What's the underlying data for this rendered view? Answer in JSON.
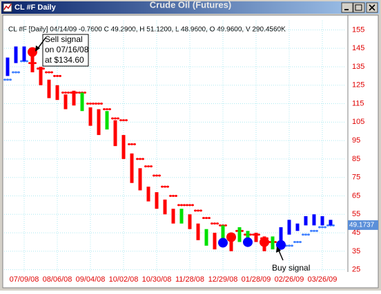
{
  "window": {
    "caption": "CL #F Daily"
  },
  "chart_data": {
    "type": "price-bars",
    "title": "Crude Oil (Futures)",
    "info": "CL #F [Daily] 04/14/09 -0.7600 C 49.2900, H 51.1200, L 48.9600, O 49.9600, V 290.4560K",
    "categories": [
      null,
      null,
      "07/09/08",
      null,
      null,
      null,
      "08/06/08",
      null,
      null,
      null,
      "09/04/08",
      null,
      null,
      null,
      "10/02/08",
      null,
      null,
      null,
      "10/30/08",
      null,
      null,
      null,
      "11/28/08",
      null,
      null,
      null,
      "12/29/08",
      null,
      null,
      null,
      "01/28/09",
      null,
      null,
      null,
      "02/26/09",
      null,
      null,
      null,
      "03/26/09",
      null
    ],
    "high": [
      140,
      146,
      146,
      142,
      135,
      128,
      125,
      120,
      122,
      121,
      113,
      112,
      111,
      106,
      98,
      88,
      80,
      70,
      67,
      63,
      58,
      58,
      55,
      50,
      47,
      45,
      49,
      44,
      48,
      46,
      45,
      43,
      43,
      48,
      52,
      50,
      54,
      55,
      54,
      52
    ],
    "low": [
      130,
      137,
      138,
      132,
      125,
      118,
      117,
      112,
      114,
      111,
      103,
      98,
      101,
      92,
      85,
      72,
      68,
      62,
      58,
      55,
      50,
      50,
      47,
      41,
      38,
      36,
      38,
      35,
      40,
      40,
      40,
      35,
      36,
      40,
      44,
      46,
      49,
      49,
      49,
      49
    ],
    "bar_colors": [
      "#0000ff",
      "#0000ff",
      "#0000ff",
      "#ff0000",
      "#ff0000",
      "#ff0000",
      "#ff0000",
      "#ff0000",
      "#ff0000",
      "#00e000",
      "#ff0000",
      "#ff0000",
      "#00e000",
      "#ff0000",
      "#ff0000",
      "#ff0000",
      "#ff0000",
      "#ff0000",
      "#ff0000",
      "#ff0000",
      "#ff0000",
      "#00e000",
      "#ff0000",
      "#ff0000",
      "#00e000",
      "#ff0000",
      "#00e000",
      "#ff0000",
      "#00e000",
      "#00e000",
      "#ff0000",
      "#ff0000",
      "#00e000",
      "#0000ff",
      "#0000ff",
      "#0000ff",
      "#0000ff",
      "#0000ff",
      "#0000ff",
      "#0000ff"
    ],
    "stops": [
      128,
      132,
      138,
      137,
      134,
      132,
      130,
      121,
      121,
      121,
      115,
      115,
      112,
      107,
      106,
      93,
      85,
      81,
      76,
      70,
      65,
      60,
      60,
      57,
      53,
      50,
      49,
      44,
      46,
      44,
      44,
      42,
      40,
      38,
      38,
      40,
      44,
      46,
      48,
      49
    ],
    "stop_colors": [
      "#4080ff",
      "#4080ff",
      "#4080ff",
      "#ff0000",
      "#ff0000",
      "#ff0000",
      "#ff0000",
      "#ff0000",
      "#ff0000",
      "#ff0000",
      "#ff0000",
      "#ff0000",
      "#ff0000",
      "#ff0000",
      "#ff0000",
      "#ff0000",
      "#ff0000",
      "#ff0000",
      "#ff0000",
      "#ff0000",
      "#ff0000",
      "#ff0000",
      "#ff0000",
      "#ff0000",
      "#ff0000",
      "#ff0000",
      "#ff0000",
      "#ff0000",
      "#ff0000",
      "#ff0000",
      "#ff0000",
      "#ff0000",
      "#ff0000",
      "#4080ff",
      "#4080ff",
      "#4080ff",
      "#4080ff",
      "#4080ff",
      "#4080ff",
      "#4080ff"
    ],
    "signals": [
      {
        "index": 3,
        "value": 143,
        "color": "#ff0000"
      },
      {
        "index": 26,
        "value": 39.6,
        "color": "#0000ff"
      },
      {
        "index": 27,
        "value": 42.6,
        "color": "#ff0000"
      },
      {
        "index": 29,
        "value": 39.9,
        "color": "#0000ff"
      },
      {
        "index": 31,
        "value": 39.9,
        "color": "#ff0000"
      },
      {
        "index": 33,
        "value": 38.4,
        "color": "#0000ff"
      }
    ],
    "sell_note": [
      "Sell signal",
      "on 07/16/08",
      "at $134.60"
    ],
    "buy_note": "Buy signal",
    "last_value": 49.1737,
    "ylim": [
      23,
      160
    ],
    "yticks": [
      25,
      35,
      45,
      55,
      65,
      75,
      85,
      95,
      105,
      115,
      125,
      135,
      145,
      155
    ],
    "grid": true
  }
}
